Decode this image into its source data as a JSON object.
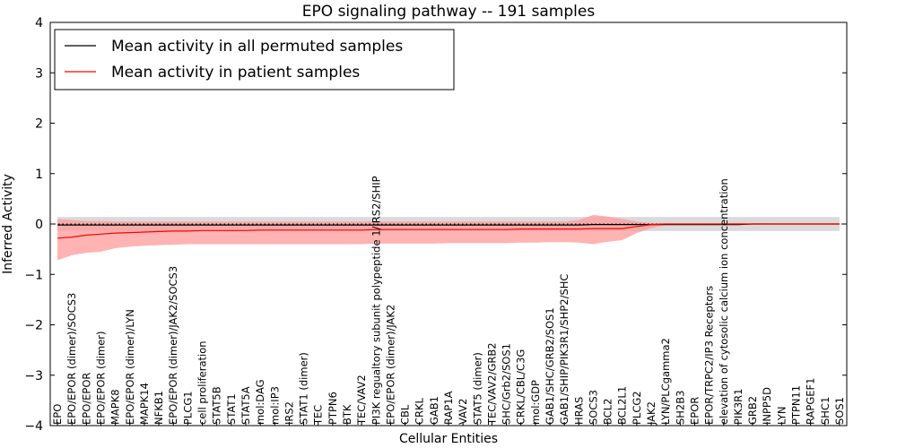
{
  "chart_data": {
    "type": "line",
    "title": "EPO signaling pathway -- 191 samples",
    "xlabel": "Cellular Entities",
    "ylabel": "Inferred Activity",
    "ylim": [
      -4,
      4
    ],
    "yticks": [
      -4,
      -3,
      -2,
      -1,
      0,
      1,
      2,
      3,
      4
    ],
    "ytick_labels": [
      "−4",
      "−3",
      "−2",
      "−1",
      "0",
      "1",
      "2",
      "3",
      "4"
    ],
    "legend_position": "top-left",
    "categories": [
      "EPO",
      "EPO/EPOR (dimer)/SOCS3",
      "EPO/EPOR",
      "EPO/EPOR (dimer)",
      "MAPK8",
      "EPO/EPOR (dimer)/LYN",
      "MAPK14",
      "NFKB1",
      "EPO/EPOR (dimer)/JAK2/SOCS3",
      "PLCG1",
      "cell proliferation",
      "STAT5B",
      "STAT1",
      "STAT5A",
      "mol:DAG",
      "mol:IP3",
      "IRS2",
      "STAT1 (dimer)",
      "TEC",
      "PTPN6",
      "BTK",
      "TEC/VAV2",
      "PI3K regualtory subunit polypeptide 1/IRS2/SHIP",
      "EPO/EPOR (dimer)/JAK2",
      "CBL",
      "CRKL",
      "GAB1",
      "RAP1A",
      "VAV2",
      "STAT5 (dimer)",
      "TEC/VAV2/GRB2",
      "SHC/Grb2/SOS1",
      "CRKL/CBL/C3G",
      "mol:GDP",
      "GAB1/SHC/GRB2/SOS1",
      "GAB1/SHIP/PIK3R1/SHP2/SHC",
      "HRAS",
      "SOCS3",
      "BCL2",
      "BCL2L1",
      "PLCG2",
      "JAK2",
      "LYN/PLCgamma2",
      "SH2B3",
      "EPOR",
      "EPOR/TRPC2/IP3 Receptors",
      "elevation of cytosolic calcium ion concentration",
      "PIK3R1",
      "GRB2",
      "INPP5D",
      "LYN",
      "PTPN11",
      "RAPGEF1",
      "SHC1",
      "SOS1"
    ],
    "series": [
      {
        "name": "Mean activity in all permuted samples",
        "color": "#000000",
        "style": "solid",
        "values": [
          -0.02,
          -0.02,
          -0.02,
          -0.02,
          -0.02,
          -0.02,
          -0.02,
          -0.02,
          -0.02,
          -0.02,
          -0.02,
          -0.02,
          -0.02,
          -0.02,
          -0.02,
          -0.02,
          -0.02,
          -0.02,
          -0.02,
          -0.02,
          -0.02,
          -0.02,
          -0.02,
          -0.02,
          -0.02,
          -0.02,
          -0.02,
          -0.02,
          -0.02,
          -0.02,
          -0.02,
          -0.02,
          -0.02,
          -0.02,
          -0.02,
          -0.02,
          -0.02,
          -0.01,
          -0.01,
          -0.01,
          -0.01,
          -0.01,
          -0.01,
          -0.01,
          -0.01,
          -0.01,
          -0.01,
          -0.01,
          0.0,
          0.0,
          0.0,
          0.0,
          0.0,
          0.0,
          0.0
        ],
        "band_lower": [
          -0.14,
          -0.14,
          -0.14,
          -0.14,
          -0.14,
          -0.14,
          -0.14,
          -0.14,
          -0.14,
          -0.14,
          -0.14,
          -0.14,
          -0.14,
          -0.14,
          -0.14,
          -0.14,
          -0.14,
          -0.14,
          -0.14,
          -0.14,
          -0.14,
          -0.14,
          -0.14,
          -0.14,
          -0.14,
          -0.14,
          -0.14,
          -0.14,
          -0.14,
          -0.14,
          -0.14,
          -0.14,
          -0.14,
          -0.14,
          -0.14,
          -0.14,
          -0.14,
          -0.14,
          -0.14,
          -0.14,
          -0.14,
          -0.14,
          -0.14,
          -0.14,
          -0.14,
          -0.14,
          -0.14,
          -0.14,
          -0.14,
          -0.14,
          -0.14,
          -0.14,
          -0.14,
          -0.14,
          -0.14
        ],
        "band_upper": [
          0.14,
          0.14,
          0.14,
          0.14,
          0.14,
          0.14,
          0.14,
          0.14,
          0.14,
          0.14,
          0.14,
          0.14,
          0.14,
          0.14,
          0.14,
          0.14,
          0.14,
          0.14,
          0.14,
          0.14,
          0.14,
          0.14,
          0.14,
          0.14,
          0.14,
          0.14,
          0.14,
          0.14,
          0.14,
          0.14,
          0.14,
          0.14,
          0.14,
          0.14,
          0.14,
          0.14,
          0.14,
          0.14,
          0.14,
          0.14,
          0.14,
          0.14,
          0.14,
          0.14,
          0.14,
          0.14,
          0.14,
          0.14,
          0.14,
          0.14,
          0.14,
          0.14,
          0.14,
          0.14,
          0.14
        ]
      },
      {
        "name": "Mean activity in patient samples",
        "color": "#ff0000",
        "style": "solid",
        "values": [
          -0.28,
          -0.26,
          -0.22,
          -0.2,
          -0.18,
          -0.17,
          -0.16,
          -0.15,
          -0.14,
          -0.14,
          -0.13,
          -0.13,
          -0.13,
          -0.13,
          -0.12,
          -0.12,
          -0.12,
          -0.12,
          -0.12,
          -0.12,
          -0.12,
          -0.12,
          -0.11,
          -0.11,
          -0.11,
          -0.11,
          -0.11,
          -0.11,
          -0.11,
          -0.11,
          -0.11,
          -0.11,
          -0.1,
          -0.1,
          -0.1,
          -0.1,
          -0.1,
          -0.09,
          -0.09,
          -0.09,
          -0.05,
          -0.01,
          0.0,
          0.0,
          0.0,
          0.0,
          0.0,
          0.0,
          0.0,
          0.0,
          0.0,
          0.0,
          0.0,
          0.0,
          0.0
        ],
        "band_lower": [
          -0.72,
          -0.62,
          -0.57,
          -0.55,
          -0.48,
          -0.45,
          -0.43,
          -0.42,
          -0.41,
          -0.4,
          -0.4,
          -0.4,
          -0.4,
          -0.4,
          -0.4,
          -0.4,
          -0.4,
          -0.4,
          -0.4,
          -0.4,
          -0.4,
          -0.4,
          -0.39,
          -0.39,
          -0.39,
          -0.39,
          -0.39,
          -0.38,
          -0.38,
          -0.38,
          -0.38,
          -0.38,
          -0.37,
          -0.37,
          -0.36,
          -0.36,
          -0.37,
          -0.4,
          -0.35,
          -0.32,
          -0.18,
          -0.08,
          -0.02,
          -0.01,
          -0.01,
          -0.01,
          -0.01,
          -0.01,
          -0.01,
          0.0,
          0.0,
          0.0,
          0.0,
          0.0,
          0.0
        ],
        "band_upper": [
          0.1,
          0.08,
          0.06,
          0.06,
          0.05,
          0.05,
          0.05,
          0.05,
          0.05,
          0.05,
          0.05,
          0.05,
          0.05,
          0.05,
          0.05,
          0.05,
          0.05,
          0.05,
          0.05,
          0.05,
          0.05,
          0.05,
          0.05,
          0.05,
          0.05,
          0.05,
          0.05,
          0.05,
          0.05,
          0.05,
          0.05,
          0.05,
          0.05,
          0.05,
          0.05,
          0.05,
          0.08,
          0.18,
          0.15,
          0.1,
          0.05,
          0.02,
          0.01,
          0.01,
          0.01,
          0.01,
          0.01,
          0.02,
          0.01,
          0.01,
          0.0,
          0.0,
          0.0,
          0.0,
          0.0
        ]
      }
    ],
    "reference_line": {
      "value": 0,
      "style": "dotted"
    }
  }
}
